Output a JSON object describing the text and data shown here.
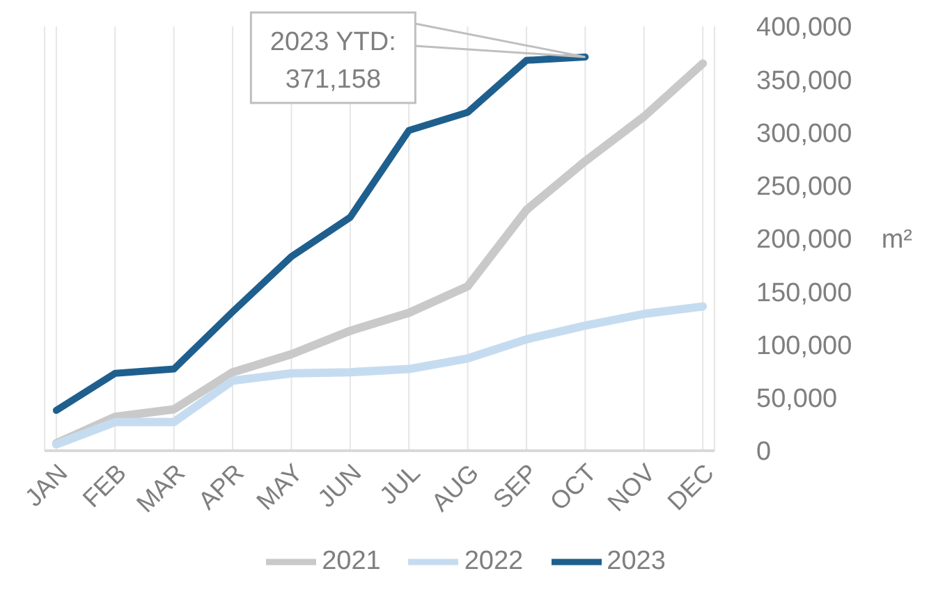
{
  "chart_data": {
    "type": "line",
    "categories": [
      "JAN",
      "FEB",
      "MAR",
      "APR",
      "MAY",
      "JUN",
      "JUL",
      "AUG",
      "SEP",
      "OCT",
      "NOV",
      "DEC"
    ],
    "series": [
      {
        "name": "2021",
        "color": "#c9c9c9",
        "values": [
          7000,
          32000,
          39000,
          74000,
          91000,
          113000,
          130000,
          155000,
          227000,
          273000,
          315000,
          365000
        ]
      },
      {
        "name": "2022",
        "color": "#c5dcf0",
        "values": [
          6000,
          27000,
          27000,
          66000,
          73000,
          74000,
          77000,
          87000,
          105000,
          118000,
          129000,
          136000
        ]
      },
      {
        "name": "2023",
        "color": "#1f5f8e",
        "values": [
          38000,
          73000,
          77000,
          131000,
          183000,
          220000,
          302000,
          319000,
          368000,
          371158,
          null,
          null
        ]
      }
    ],
    "ylabel": "m²",
    "ylim": [
      0,
      400000
    ],
    "yticks": [
      0,
      {
        "value": 50000,
        "label": "50,000"
      },
      {
        "value": 100000,
        "label": "100,000"
      },
      {
        "value": 150000,
        "label": "150,000"
      },
      {
        "value": 200000,
        "label": "200,000"
      },
      {
        "value": 250000,
        "label": "250,000"
      },
      {
        "value": 300000,
        "label": "300,000"
      },
      {
        "value": 350000,
        "label": "350,000"
      },
      {
        "value": 400000,
        "label": "400,000"
      }
    ],
    "annotations": [
      "2023 YTD: 371,158"
    ],
    "grid": "x",
    "legend": "bottom",
    "marker": "none",
    "line_style": "solid"
  }
}
